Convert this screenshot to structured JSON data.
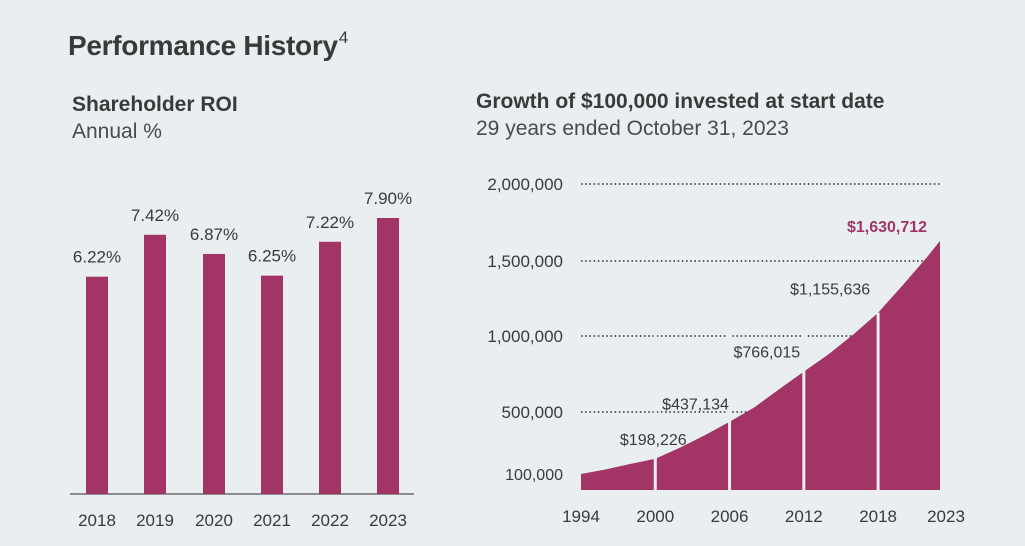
{
  "page": {
    "title": "Performance History",
    "title_superscript": "4"
  },
  "colors": {
    "bar": "#a23566",
    "area": "#a23566",
    "highlight_label": "#a23566",
    "text": "#3a3a3a",
    "background": "#e9eef1"
  },
  "chart_data": [
    {
      "type": "bar",
      "title": "Shareholder ROI",
      "subtitle": "Annual %",
      "categories": [
        "2018",
        "2019",
        "2020",
        "2021",
        "2022",
        "2023"
      ],
      "values": [
        6.22,
        7.42,
        6.87,
        6.25,
        7.22,
        7.9
      ],
      "value_labels": [
        "6.22%",
        "7.42%",
        "6.87%",
        "6.25%",
        "7.22%",
        "7.90%"
      ],
      "ylim": [
        0,
        10
      ],
      "grid": false,
      "legend": "none"
    },
    {
      "type": "area",
      "title": "Growth of $100,000 invested at start date",
      "subtitle": "29 years ended October 31, 2023",
      "x_ticks": [
        "1994",
        "2000",
        "2006",
        "2012",
        "2018",
        "2023"
      ],
      "y_ticks": [
        {
          "value": 2000000,
          "label": "2,000,000"
        },
        {
          "value": 1500000,
          "label": "1,500,000"
        },
        {
          "value": 1000000,
          "label": "1,000,000"
        },
        {
          "value": 500000,
          "label": "500,000"
        },
        {
          "value": 100000,
          "label": "100,000"
        }
      ],
      "ylim": [
        100000,
        2000000
      ],
      "xlim": [
        1994,
        2023
      ],
      "x": [
        1994,
        1996,
        1998,
        2000,
        2002,
        2004,
        2006,
        2008,
        2010,
        2012,
        2014,
        2016,
        2018,
        2020,
        2022,
        2023
      ],
      "y": [
        100000,
        130000,
        165000,
        198226,
        270000,
        350000,
        437134,
        530000,
        650000,
        766015,
        880000,
        1010000,
        1155636,
        1340000,
        1530000,
        1630712
      ],
      "dividers": [
        2000,
        2006,
        2012,
        2018
      ],
      "point_labels": [
        {
          "x": 2000,
          "y": 198226,
          "label": "$198,226",
          "highlight": false
        },
        {
          "x": 2006,
          "y": 437134,
          "label": "$437,134",
          "highlight": false
        },
        {
          "x": 2012,
          "y": 766015,
          "label": "$766,015",
          "highlight": false
        },
        {
          "x": 2018,
          "y": 1155636,
          "label": "$1,155,636",
          "highlight": false
        },
        {
          "x": 2023,
          "y": 1630712,
          "label": "$1,630,712",
          "highlight": true
        }
      ],
      "grid": "dotted horizontal",
      "legend": "none"
    }
  ]
}
